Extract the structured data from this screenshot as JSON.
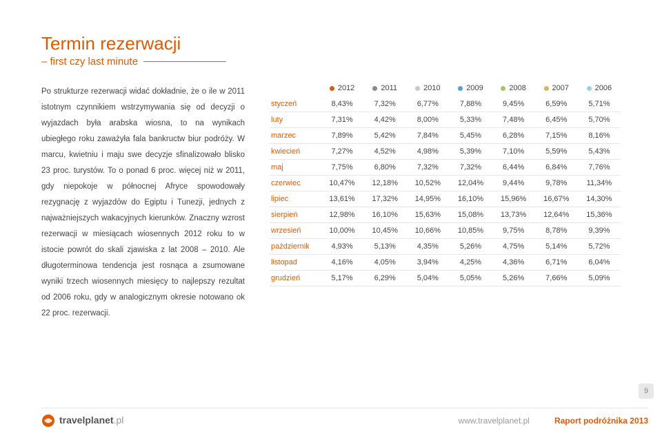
{
  "colors": {
    "accent": "#e05a00",
    "text": "#444444",
    "rule": "#e05a00",
    "page_badge_bg": "#e8e8e8",
    "page_badge_text": "#888888"
  },
  "title": "Termin rezerwacji",
  "subtitle": "– first czy last minute",
  "body": "Po strukturze rezerwacji widać dokładnie, że o ile w 2011 istotnym czynnikiem wstrzymywania się od decyzji o wyjazdach była arabska wiosna, to na wynikach ubiegłego roku zaważyła fala bankructw biur podróży. W marcu, kwietniu i maju swe decyzje sfinalizowało blisko 23 proc. turystów. To o ponad 6 proc. więcej niż w 2011, gdy niepokoje w północnej Afryce spowodowały rezygnację z wyjazdów do Egiptu i Tunezji, jednych z najważniejszych wakacyjnych kierunków. Znaczny wzrost rezerwacji w miesiącach wiosennych 2012 roku to w istocie powrót do skali zjawiska z lat 2008 – 2010. Ale długoterminowa tendencja jest rosnąca a zsumowane wyniki trzech wiosennych miesięcy to najlepszy rezultat od 2006 roku, gdy w analogicznym okresie notowano ok 22 proc. rezerwacji.",
  "years": [
    "2012",
    "2011",
    "2010",
    "2009",
    "2008",
    "2007",
    "2006"
  ],
  "year_colors": [
    "#e05a00",
    "#8a8a8a",
    "#c9c9c9",
    "#5aa0c8",
    "#9fc76a",
    "#d4b560",
    "#9bd2e6"
  ],
  "months": [
    "styczeń",
    "luty",
    "marzec",
    "kwiecień",
    "maj",
    "czerwiec",
    "lipiec",
    "sierpień",
    "wrzesień",
    "październik",
    "listopad",
    "grudzień"
  ],
  "rows": [
    [
      "8,43%",
      "7,32%",
      "6,77%",
      "7,88%",
      "9,45%",
      "6,59%",
      "5,71%"
    ],
    [
      "7,31%",
      "4,42%",
      "8,00%",
      "5,33%",
      "7,48%",
      "6,45%",
      "5,70%"
    ],
    [
      "7,89%",
      "5,42%",
      "7,84%",
      "5,45%",
      "6,28%",
      "7,15%",
      "8,16%"
    ],
    [
      "7,27%",
      "4,52%",
      "4,98%",
      "5,39%",
      "7,10%",
      "5,59%",
      "5,43%"
    ],
    [
      "7,75%",
      "6,80%",
      "7,32%",
      "7,32%",
      "6,44%",
      "6,84%",
      "7,76%"
    ],
    [
      "10,47%",
      "12,18%",
      "10,52%",
      "12,04%",
      "9,44%",
      "9,78%",
      "11,34%"
    ],
    [
      "13,61%",
      "17,32%",
      "14,95%",
      "16,10%",
      "15,96%",
      "16,67%",
      "14,30%"
    ],
    [
      "12,98%",
      "16,10%",
      "15,63%",
      "15,08%",
      "13,73%",
      "12,64%",
      "15,36%"
    ],
    [
      "10,00%",
      "10,45%",
      "10,66%",
      "10,85%",
      "9,75%",
      "8,78%",
      "9,39%"
    ],
    [
      "4,93%",
      "5,13%",
      "4,35%",
      "5,26%",
      "4,75%",
      "5,14%",
      "5,72%"
    ],
    [
      "4,16%",
      "4,05%",
      "3,94%",
      "4,25%",
      "4,36%",
      "6,71%",
      "6,04%"
    ],
    [
      "5,17%",
      "6,29%",
      "5,04%",
      "5,05%",
      "5,26%",
      "7,66%",
      "5,09%"
    ]
  ],
  "footer": {
    "brand": "travelplanet",
    "tld": ".pl",
    "url": "www.travelplanet.pl",
    "report": "Raport podróżnika 2013"
  },
  "page_number": "9"
}
